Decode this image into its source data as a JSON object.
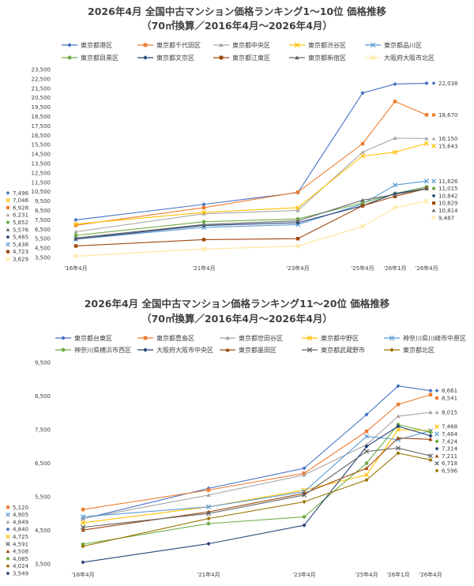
{
  "chart_data": [
    {
      "type": "line",
      "title": "2026年4月 全国中古マンション価格ランキング1～10位 価格推移",
      "subtitle": "（70㎡換算／2016年4月～2026年4月）",
      "x": [
        "'16年4月",
        "'21年4月",
        "'23年4月",
        "'25年4月",
        "'26年1月",
        "'26年4月"
      ],
      "y_ticks": [
        "3,500",
        "4,500",
        "5,500",
        "6,500",
        "7,500",
        "8,500",
        "9,500",
        "10,500",
        "11,500",
        "12,500",
        "13,500",
        "14,500",
        "15,500",
        "16,500",
        "17,500",
        "18,500",
        "19,500",
        "20,500",
        "21,500",
        "22,500",
        "23,500"
      ],
      "ylim": [
        3500,
        23500
      ],
      "legend_position": "top",
      "series": [
        {
          "name": "東京都港区",
          "color": "#4472c4",
          "marker": "diamond",
          "start_label": "7,496",
          "end_label": "22,038",
          "values": [
            7496,
            9150,
            10400,
            21000,
            21950,
            22038
          ]
        },
        {
          "name": "東京都千代田区",
          "color": "#ed7d31",
          "marker": "square",
          "start_label": "6,928",
          "end_label": "18,670",
          "values": [
            6928,
            8800,
            10450,
            15600,
            20100,
            18670
          ]
        },
        {
          "name": "東京都中央区",
          "color": "#a5a5a5",
          "marker": "triangle",
          "start_label": "6,231",
          "end_label": "16,150",
          "values": [
            6231,
            8150,
            8500,
            14700,
            16200,
            16150
          ]
        },
        {
          "name": "東京都渋谷区",
          "color": "#ffc000",
          "marker": "x",
          "start_label": "7,046",
          "end_label": "15,643",
          "values": [
            7046,
            8300,
            8800,
            14300,
            14700,
            15643
          ]
        },
        {
          "name": "東京都品川区",
          "color": "#5b9bd5",
          "marker": "x",
          "start_label": "5,438",
          "end_label": "11,626",
          "values": [
            5438,
            6700,
            7000,
            9200,
            11200,
            11626
          ]
        },
        {
          "name": "東京都目黒区",
          "color": "#70ad47",
          "marker": "circle",
          "start_label": "5,852",
          "end_label": "11,015",
          "values": [
            5852,
            7300,
            7600,
            9300,
            10300,
            11015
          ]
        },
        {
          "name": "東京都文京区",
          "color": "#264478",
          "marker": "diamond",
          "start_label": "5,465",
          "end_label": "10,842",
          "values": [
            5465,
            6900,
            7200,
            9000,
            10300,
            10842
          ]
        },
        {
          "name": "東京都江東区",
          "color": "#9e480e",
          "marker": "square",
          "start_label": "4,723",
          "end_label": "10,829",
          "values": [
            4723,
            5400,
            5500,
            9000,
            10000,
            10829
          ]
        },
        {
          "name": "東京都新宿区",
          "color": "#636363",
          "marker": "triangle",
          "start_label": "5,576",
          "end_label": "10,814",
          "values": [
            5576,
            7000,
            7400,
            9600,
            10200,
            10814
          ]
        },
        {
          "name": "大阪府大阪市北区",
          "color": "#ffe699",
          "marker": "x",
          "start_label": "3,629",
          "end_label": "9,487",
          "values": [
            3629,
            4400,
            4700,
            6800,
            8800,
            9487
          ]
        }
      ]
    },
    {
      "type": "line",
      "title": "2026年4月 全国中古マンション価格ランキング11～20位 価格推移",
      "subtitle": "（70㎡換算／2016年4月～2026年4月）",
      "x": [
        "'16年4月",
        "'21年4月",
        "'23年4月",
        "'25年4月",
        "'26年1月",
        "'26年4月"
      ],
      "y_ticks": [
        "3,500",
        "4,500",
        "5,500",
        "6,500",
        "7,500",
        "8,500",
        "9,500"
      ],
      "ylim": [
        3500,
        9500
      ],
      "legend_position": "top",
      "series": [
        {
          "name": "東京都台東区",
          "color": "#4472c4",
          "marker": "diamond",
          "start_label": "4,840",
          "end_label": "8,661",
          "values": [
            4840,
            5750,
            6350,
            7950,
            8800,
            8661
          ]
        },
        {
          "name": "東京都豊島区",
          "color": "#ed7d31",
          "marker": "square",
          "start_label": "5,120",
          "end_label": "8,541",
          "values": [
            5120,
            5700,
            6200,
            7450,
            8250,
            8541
          ]
        },
        {
          "name": "東京都世田谷区",
          "color": "#a5a5a5",
          "marker": "triangle",
          "start_label": "4,849",
          "end_label": "8,015",
          "values": [
            4849,
            5550,
            6150,
            7050,
            7900,
            8015
          ]
        },
        {
          "name": "東京都中野区",
          "color": "#ffc000",
          "marker": "x",
          "start_label": "4,725",
          "end_label": "7,468",
          "values": [
            4725,
            5200,
            5700,
            6150,
            7500,
            7468
          ]
        },
        {
          "name": "神奈川県川崎市中原区",
          "color": "#5b9bd5",
          "marker": "x",
          "start_label": "4,905",
          "end_label": "7,464",
          "values": [
            4905,
            5200,
            5650,
            7300,
            7200,
            7464
          ]
        },
        {
          "name": "神奈川県横浜市西区",
          "color": "#70ad47",
          "marker": "circle",
          "start_label": "4,085",
          "end_label": "7,424",
          "values": [
            4085,
            4700,
            4900,
            6500,
            7650,
            7424
          ]
        },
        {
          "name": "大阪府大阪市中央区",
          "color": "#264478",
          "marker": "diamond",
          "start_label": "3,549",
          "end_label": "7,314",
          "values": [
            3549,
            4100,
            4650,
            7000,
            7600,
            7314
          ]
        },
        {
          "name": "東京都墨田区",
          "color": "#9e480e",
          "marker": "triangle",
          "start_label": "4,508",
          "end_label": "7,211",
          "values": [
            4508,
            5050,
            5600,
            6350,
            7250,
            7211
          ]
        },
        {
          "name": "東京都武蔵野市",
          "color": "#636363",
          "marker": "x",
          "start_label": "4,591",
          "end_label": "6,718",
          "values": [
            4591,
            5000,
            5550,
            6850,
            6950,
            6718
          ]
        },
        {
          "name": "東京都北区",
          "color": "#997300",
          "marker": "diamond",
          "start_label": "4,024",
          "end_label": "6,596",
          "values": [
            4024,
            4850,
            5350,
            6000,
            6800,
            6596
          ]
        }
      ]
    }
  ]
}
